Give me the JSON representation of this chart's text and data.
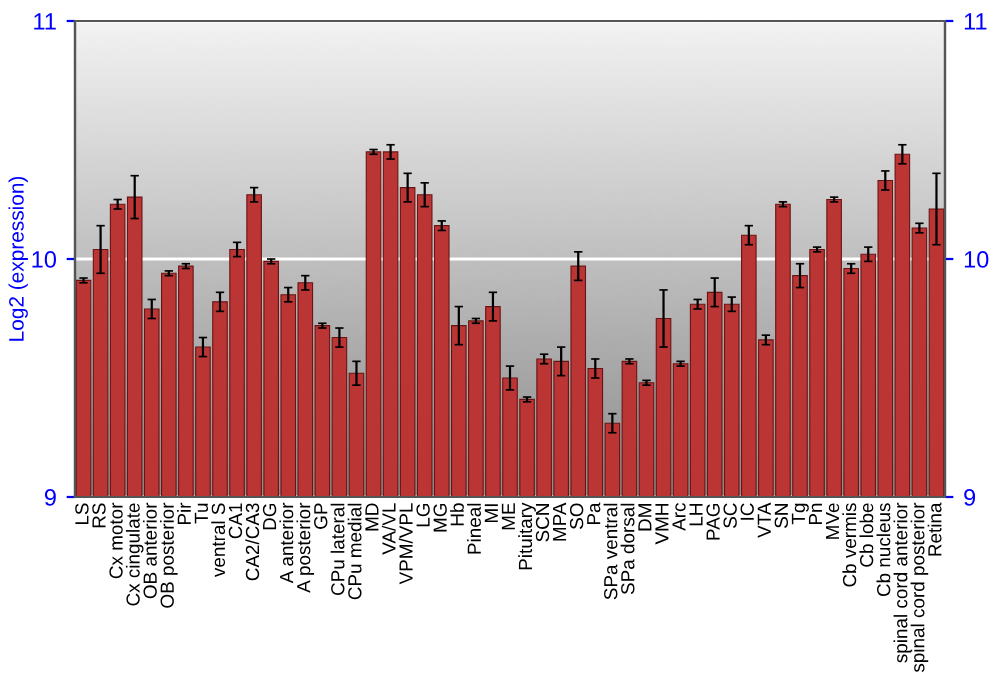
{
  "chart_data": {
    "type": "bar",
    "ylabel": "Log2 (expression)",
    "categories": [
      "LS",
      "RS",
      "Cx motor",
      "Cx cingulate",
      "OB anterior",
      "OB posterior",
      "Pir",
      "Tu",
      "ventral S",
      "CA1",
      "CA2/CA3",
      "DG",
      "A anterior",
      "A posterior",
      "GP",
      "CPu lateral",
      "CPu medial",
      "MD",
      "VA/VL",
      "VPM/VPL",
      "LG",
      "MG",
      "Hb",
      "Pineal",
      "MI",
      "ME",
      "Pituitary",
      "SCN",
      "MPA",
      "SO",
      "Pa",
      "SPa ventral",
      "SPa dorsal",
      "DM",
      "VMH",
      "Arc",
      "LH",
      "PAG",
      "SC",
      "IC",
      "VTA",
      "SN",
      "Tg",
      "Pn",
      "MVe",
      "Cb vermis",
      "Cb lobe",
      "Cb nucleus",
      "spinal cord anterior",
      "spinal cord posterior",
      "Retina"
    ],
    "values": [
      9.91,
      10.04,
      10.23,
      10.26,
      9.79,
      9.94,
      9.97,
      9.63,
      9.82,
      10.04,
      10.27,
      9.99,
      9.85,
      9.9,
      9.72,
      9.67,
      9.52,
      10.45,
      10.45,
      10.3,
      10.27,
      10.14,
      9.72,
      9.74,
      9.8,
      9.5,
      9.41,
      9.58,
      9.57,
      9.97,
      9.54,
      9.31,
      9.57,
      9.48,
      9.75,
      9.56,
      9.81,
      9.86,
      9.81,
      10.1,
      9.66,
      10.23,
      9.93,
      10.04,
      10.25,
      9.96,
      10.02,
      10.33,
      10.44,
      10.13,
      10.21
    ],
    "errors": [
      0.01,
      0.1,
      0.02,
      0.09,
      0.04,
      0.01,
      0.01,
      0.04,
      0.04,
      0.03,
      0.03,
      0.01,
      0.03,
      0.03,
      0.01,
      0.04,
      0.05,
      0.01,
      0.03,
      0.06,
      0.05,
      0.02,
      0.08,
      0.01,
      0.06,
      0.05,
      0.01,
      0.02,
      0.06,
      0.06,
      0.04,
      0.04,
      0.01,
      0.01,
      0.12,
      0.01,
      0.02,
      0.06,
      0.03,
      0.04,
      0.02,
      0.01,
      0.05,
      0.01,
      0.01,
      0.02,
      0.03,
      0.04,
      0.04,
      0.02,
      0.15
    ],
    "color": "#bb3535",
    "ylim": [
      9,
      11
    ],
    "yticks": [
      9,
      10,
      11
    ],
    "y2lim": [
      9,
      11
    ],
    "y2ticks": [
      9,
      10,
      11
    ],
    "grid": "y",
    "legend": false
  }
}
